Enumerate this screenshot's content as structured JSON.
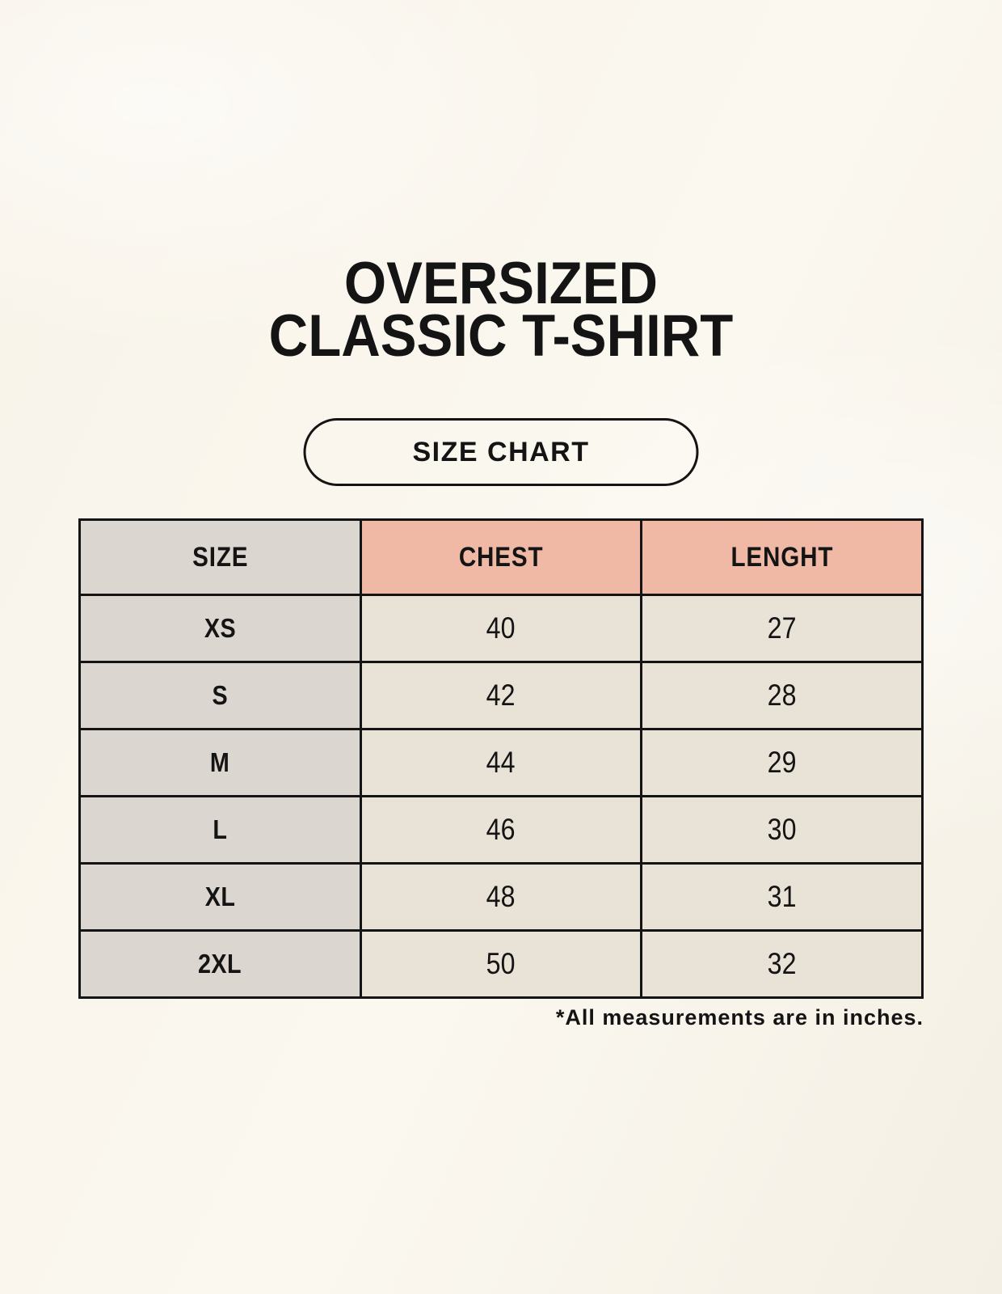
{
  "title": {
    "line1": "OVERSIZED",
    "line2": "CLASSIC T-SHIRT"
  },
  "size_chart_button": {
    "label": "SIZE CHART"
  },
  "table": {
    "headers": [
      "SIZE",
      "CHEST",
      "LENGHT"
    ],
    "rows": [
      [
        "XS",
        "40",
        "27"
      ],
      [
        "S",
        "42",
        "28"
      ],
      [
        "M",
        "44",
        "29"
      ],
      [
        "L",
        "46",
        "30"
      ],
      [
        "XL",
        "48",
        "31"
      ],
      [
        "2XL",
        "50",
        "32"
      ]
    ]
  },
  "footnote": "*All measurements are in inches.",
  "chart_data": {
    "type": "table",
    "title": "OVERSIZED CLASSIC T-SHIRT — SIZE CHART",
    "columns": [
      "SIZE",
      "CHEST",
      "LENGHT"
    ],
    "rows": [
      {
        "size": "XS",
        "chest": 40,
        "lenght": 27
      },
      {
        "size": "S",
        "chest": 42,
        "lenght": 28
      },
      {
        "size": "M",
        "chest": 44,
        "lenght": 29
      },
      {
        "size": "L",
        "chest": 46,
        "lenght": 30
      },
      {
        "size": "XL",
        "chest": 48,
        "lenght": 31
      },
      {
        "size": "2XL",
        "chest": 50,
        "lenght": 32
      }
    ],
    "units": "inches",
    "note": "*All measurements are in inches."
  },
  "colors": {
    "background_cream": "#f9f5ec",
    "size_column_gray": "#dcd6d0",
    "header_salmon": "#f0b9a6",
    "value_cell_beige": "#e9e2d6",
    "border_and_text": "#141414"
  }
}
